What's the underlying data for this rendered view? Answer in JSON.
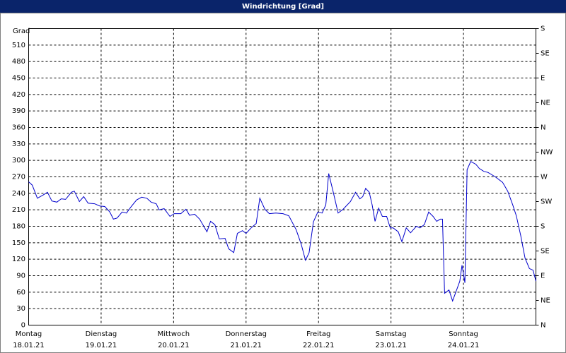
{
  "chart_data": {
    "type": "line",
    "title": "Windrichtung [Grad]",
    "ylabel": "Grad",
    "xlim": [
      0,
      7
    ],
    "xticks": [
      {
        "value": 0,
        "label": "Montag",
        "date": "18.01.21"
      },
      {
        "value": 1,
        "label": "Dienstag",
        "date": "19.01.21"
      },
      {
        "value": 2,
        "label": "Mittwoch",
        "date": "20.01.21"
      },
      {
        "value": 3,
        "label": "Donnerstag",
        "date": "21.01.21"
      },
      {
        "value": 4,
        "label": "Freitag",
        "date": "22.01.21"
      },
      {
        "value": 5,
        "label": "Samstag",
        "date": "23.01.21"
      },
      {
        "value": 6,
        "label": "Sonntag",
        "date": "24.01.21"
      }
    ],
    "ylim": [
      0,
      540
    ],
    "yticks": [
      0,
      30,
      60,
      90,
      120,
      150,
      180,
      210,
      240,
      270,
      300,
      330,
      360,
      390,
      420,
      450,
      480,
      510
    ],
    "y2lim": [
      0,
      540
    ],
    "y2ticks": [
      {
        "value": 0,
        "label": "N"
      },
      {
        "value": 45,
        "label": "NE"
      },
      {
        "value": 90,
        "label": "E"
      },
      {
        "value": 135,
        "label": "SE"
      },
      {
        "value": 180,
        "label": "S"
      },
      {
        "value": 225,
        "label": "SW"
      },
      {
        "value": 270,
        "label": "W"
      },
      {
        "value": 315,
        "label": "NW"
      },
      {
        "value": 360,
        "label": "N"
      },
      {
        "value": 405,
        "label": "NE"
      },
      {
        "value": 450,
        "label": "E"
      },
      {
        "value": 495,
        "label": "SE"
      },
      {
        "value": 540,
        "label": "S"
      }
    ],
    "grid": true,
    "color": "#0000cc",
    "x": [
      0,
      0.05,
      0.12,
      0.2,
      0.26,
      0.32,
      0.39,
      0.45,
      0.51,
      0.59,
      0.63,
      0.7,
      0.76,
      0.82,
      0.91,
      0.98,
      1.05,
      1.12,
      1.17,
      1.22,
      1.29,
      1.35,
      1.41,
      1.49,
      1.56,
      1.63,
      1.69,
      1.76,
      1.8,
      1.87,
      1.95,
      2.01,
      2.1,
      2.17,
      2.22,
      2.29,
      2.36,
      2.46,
      2.51,
      2.57,
      2.63,
      2.71,
      2.76,
      2.83,
      2.88,
      2.95,
      3.0,
      3.07,
      3.14,
      3.19,
      3.26,
      3.32,
      3.41,
      3.51,
      3.59,
      3.69,
      3.76,
      3.82,
      3.87,
      3.93,
      3.99,
      4.05,
      4.1,
      4.14,
      4.2,
      4.27,
      4.34,
      4.44,
      4.51,
      4.57,
      4.61,
      4.65,
      4.7,
      4.74,
      4.78,
      4.83,
      4.88,
      4.94,
      4.99,
      5.03,
      5.1,
      5.15,
      5.21,
      5.27,
      5.35,
      5.4,
      5.46,
      5.52,
      5.58,
      5.63,
      5.68,
      5.71,
      5.74,
      5.8,
      5.85,
      5.9,
      5.95,
      5.98,
      6.02,
      6.05,
      6.1,
      6.17,
      6.22,
      6.28,
      6.34,
      6.44,
      6.54,
      6.61,
      6.68,
      6.73,
      6.79,
      6.85,
      6.91,
      6.96,
      7.0
    ],
    "values": [
      261,
      255,
      231,
      237,
      242,
      226,
      224,
      230,
      229,
      242,
      244,
      225,
      234,
      222,
      221,
      217,
      216,
      206,
      193,
      195,
      206,
      204,
      215,
      228,
      233,
      231,
      224,
      221,
      210,
      212,
      198,
      203,
      203,
      211,
      200,
      202,
      193,
      170,
      189,
      183,
      157,
      158,
      139,
      132,
      167,
      172,
      167,
      177,
      185,
      231,
      211,
      203,
      204,
      203,
      199,
      174,
      148,
      118,
      132,
      188,
      206,
      204,
      219,
      276,
      244,
      204,
      211,
      225,
      242,
      230,
      234,
      249,
      242,
      219,
      189,
      213,
      198,
      198,
      177,
      177,
      170,
      152,
      177,
      168,
      180,
      177,
      183,
      206,
      198,
      189,
      193,
      193,
      58,
      64,
      44,
      62,
      80,
      109,
      77,
      283,
      298,
      293,
      285,
      280,
      278,
      270,
      260,
      244,
      219,
      199,
      163,
      122,
      103,
      100,
      80
    ]
  }
}
